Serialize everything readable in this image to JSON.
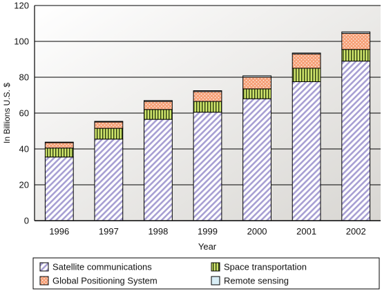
{
  "chart_data": {
    "type": "bar",
    "stacked": true,
    "categories": [
      "1996",
      "1997",
      "1998",
      "1999",
      "2000",
      "2001",
      "2002"
    ],
    "series": [
      {
        "name": "Satellite communications",
        "values": [
          35.5,
          45.5,
          56.5,
          60.5,
          68,
          77.5,
          89
        ],
        "pattern": "diagonal-hatch",
        "color": "#a79fd3"
      },
      {
        "name": "Space transportation",
        "values": [
          5,
          6,
          5.5,
          6,
          5.5,
          7.5,
          6.5
        ],
        "pattern": "vertical-stripes",
        "color": "#cde36a"
      },
      {
        "name": "Global Positioning System",
        "values": [
          3,
          3.5,
          4.5,
          5.5,
          6.5,
          8,
          9
        ],
        "pattern": "dots",
        "color": "#f6a178"
      },
      {
        "name": "Remote sensing",
        "values": [
          0.3,
          0.4,
          0.5,
          0.5,
          0.8,
          0.5,
          0.8
        ],
        "pattern": "solid",
        "color": "#d9eef6"
      }
    ],
    "xlabel": "Year",
    "ylabel": "In Billions U.S. $",
    "ylim": [
      0,
      120
    ],
    "yticks": [
      0,
      20,
      40,
      60,
      80,
      100,
      120
    ],
    "grid": true,
    "background_gradient": [
      "#ffffff",
      "#d8d6d2"
    ],
    "legend": {
      "placement": "bottom",
      "columns": 2,
      "order": [
        "Satellite communications",
        "Space transportation",
        "Global Positioning System",
        "Remote sensing"
      ]
    }
  }
}
